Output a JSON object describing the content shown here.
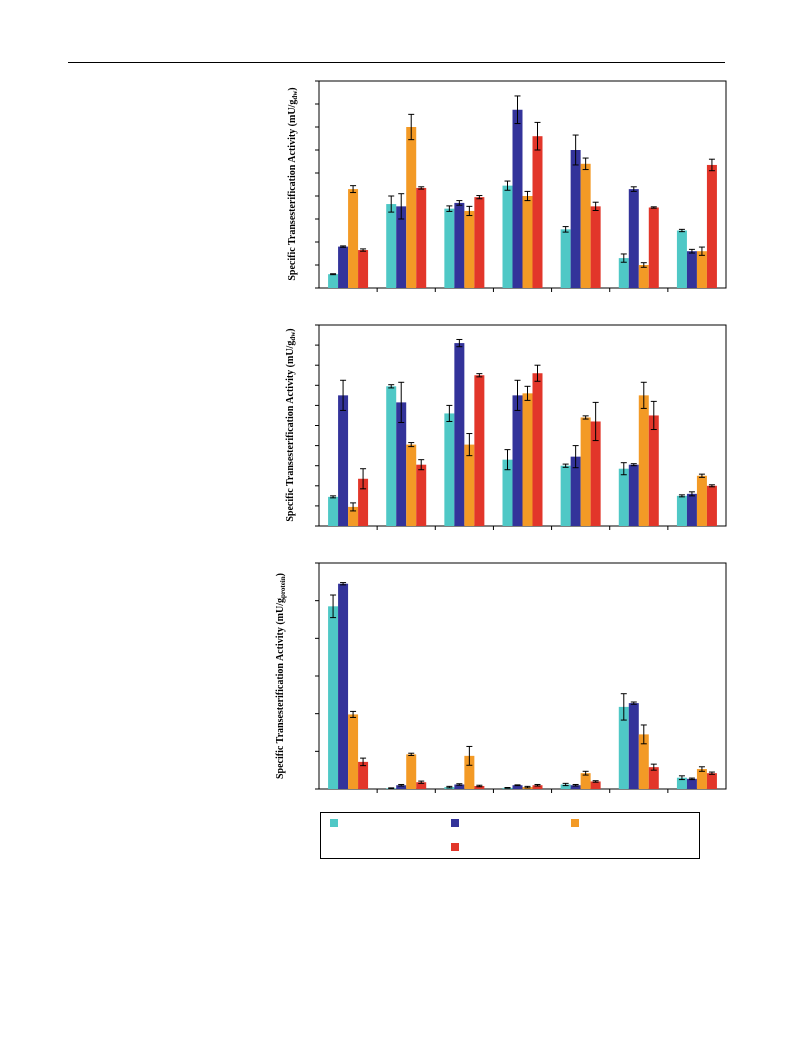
{
  "colors": {
    "s1": "#4fc8c6",
    "s2": "#33339a",
    "s3": "#f39a26",
    "s4": "#e2362a",
    "axis": "#000000"
  },
  "chart_data": [
    {
      "type": "bar",
      "ylabel": "Specific Transesterification Activity (mU/g",
      "ylabel_sub": "dw",
      "ylabel_close": ")",
      "categories": [
        "",
        "",
        "",
        "",
        "",
        "",
        ""
      ],
      "ylim": [
        0,
        9
      ],
      "series": [
        {
          "values": [
            0.6,
            3.65,
            3.45,
            4.45,
            2.55,
            1.3,
            2.5
          ],
          "errors": [
            0.02,
            0.35,
            0.12,
            0.2,
            0.12,
            0.18,
            0.05
          ]
        },
        {
          "values": [
            1.8,
            3.55,
            3.7,
            7.75,
            6.0,
            4.3,
            1.6
          ],
          "errors": [
            0.03,
            0.55,
            0.1,
            0.6,
            0.65,
            0.1,
            0.08
          ]
        },
        {
          "values": [
            4.3,
            7.0,
            3.35,
            4.0,
            5.4,
            1.0,
            1.6
          ],
          "errors": [
            0.15,
            0.55,
            0.2,
            0.2,
            0.25,
            0.1,
            0.18
          ]
        },
        {
          "values": [
            1.65,
            4.35,
            3.95,
            6.6,
            3.55,
            3.5,
            5.35
          ],
          "errors": [
            0.05,
            0.05,
            0.07,
            0.6,
            0.18,
            0.03,
            0.25
          ]
        }
      ]
    },
    {
      "type": "bar",
      "ylabel": "Specific Transesterification Activity (mU/g",
      "ylabel_sub": "dw",
      "ylabel_close": ")",
      "categories": [
        "",
        "",
        "",
        "",
        "",
        "",
        ""
      ],
      "ylim": [
        0,
        10
      ],
      "series": [
        {
          "values": [
            1.45,
            6.95,
            5.6,
            3.3,
            3.0,
            2.85,
            1.5
          ],
          "errors": [
            0.05,
            0.08,
            0.4,
            0.5,
            0.08,
            0.3,
            0.05
          ]
        },
        {
          "values": [
            6.5,
            6.15,
            9.1,
            6.5,
            3.45,
            3.05,
            1.6
          ],
          "errors": [
            0.75,
            1.0,
            0.18,
            0.75,
            0.55,
            0.05,
            0.1
          ]
        },
        {
          "values": [
            0.95,
            4.05,
            4.05,
            6.6,
            5.4,
            6.5,
            2.5
          ],
          "errors": [
            0.2,
            0.1,
            0.55,
            0.35,
            0.08,
            0.65,
            0.08
          ]
        },
        {
          "values": [
            2.35,
            3.05,
            7.5,
            7.6,
            5.2,
            5.5,
            2.0
          ],
          "errors": [
            0.5,
            0.25,
            0.08,
            0.4,
            0.95,
            0.7,
            0.05
          ]
        }
      ]
    },
    {
      "type": "bar",
      "ylabel": "Specific Transesterification Activity (mU/g",
      "ylabel_sub": "protein",
      "ylabel_close": ")",
      "categories": [
        "",
        "",
        "",
        "",
        "",
        "",
        ""
      ],
      "ylim": [
        0,
        6
      ],
      "series": [
        {
          "values": [
            4.85,
            0.02,
            0.05,
            0.03,
            0.12,
            2.18,
            0.3
          ],
          "errors": [
            0.3,
            0.01,
            0.02,
            0.01,
            0.03,
            0.35,
            0.05
          ]
        },
        {
          "values": [
            5.45,
            0.1,
            0.12,
            0.1,
            0.1,
            2.28,
            0.27
          ],
          "errors": [
            0.03,
            0.02,
            0.02,
            0.01,
            0.02,
            0.03,
            0.02
          ]
        },
        {
          "values": [
            1.98,
            0.92,
            0.88,
            0.05,
            0.42,
            1.45,
            0.53
          ],
          "errors": [
            0.08,
            0.03,
            0.25,
            0.02,
            0.05,
            0.25,
            0.06
          ]
        },
        {
          "values": [
            0.72,
            0.18,
            0.08,
            0.1,
            0.2,
            0.58,
            0.42
          ],
          "errors": [
            0.1,
            0.03,
            0.02,
            0.02,
            0.02,
            0.08,
            0.03
          ]
        }
      ]
    }
  ],
  "legend": {
    "items": [
      {
        "label": ""
      },
      {
        "label": ""
      },
      {
        "label": ""
      },
      {
        "label": ""
      }
    ]
  }
}
